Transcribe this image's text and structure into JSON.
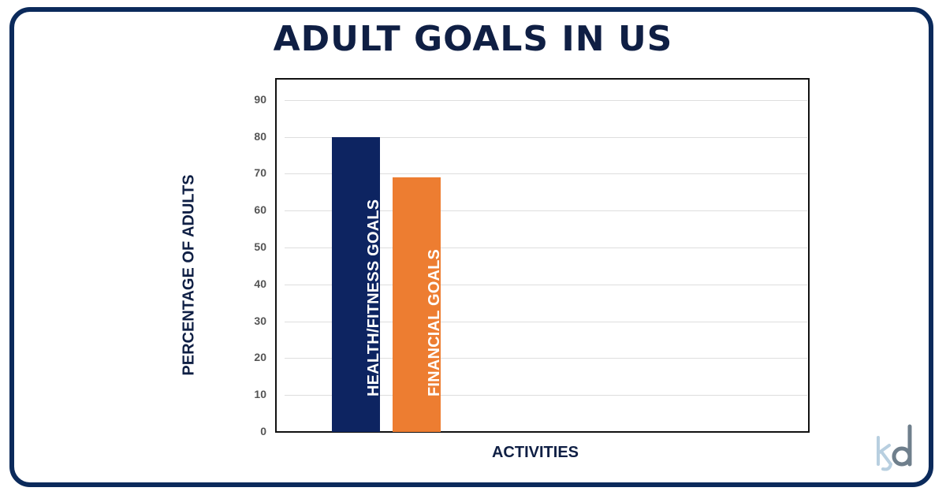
{
  "title": "ADULT GOALS IN US",
  "colors": {
    "frame": "#0b2a5b",
    "navy_bar": "#0d2461",
    "orange_bar": "#ed7d31",
    "title": "#0f1f44"
  },
  "axis": {
    "ylabel": "PERCENTAGE OF ADULTS",
    "xlabel": "ACTIVITIES",
    "ticks": [
      "0",
      "10",
      "20",
      "30",
      "40",
      "50",
      "60",
      "70",
      "80",
      "90"
    ]
  },
  "bars": [
    {
      "label": "HEALTH/FITNESS GOALS",
      "value": 80,
      "color": "#0d2461"
    },
    {
      "label": "FINANCIAL GOALS",
      "value": 69,
      "color": "#ed7d31"
    }
  ],
  "logo": {
    "text": "kd"
  },
  "chart_data": {
    "type": "bar",
    "title": "ADULT GOALS IN US",
    "categories": [
      "HEALTH/FITNESS GOALS",
      "FINANCIAL GOALS"
    ],
    "values": [
      80,
      69
    ],
    "xlabel": "ACTIVITIES",
    "ylabel": "PERCENTAGE OF ADULTS",
    "ylim": [
      0,
      90
    ],
    "yticks": [
      0,
      10,
      20,
      30,
      40,
      50,
      60,
      70,
      80,
      90
    ],
    "grid": true,
    "legend": "none (labels inside bars)"
  }
}
